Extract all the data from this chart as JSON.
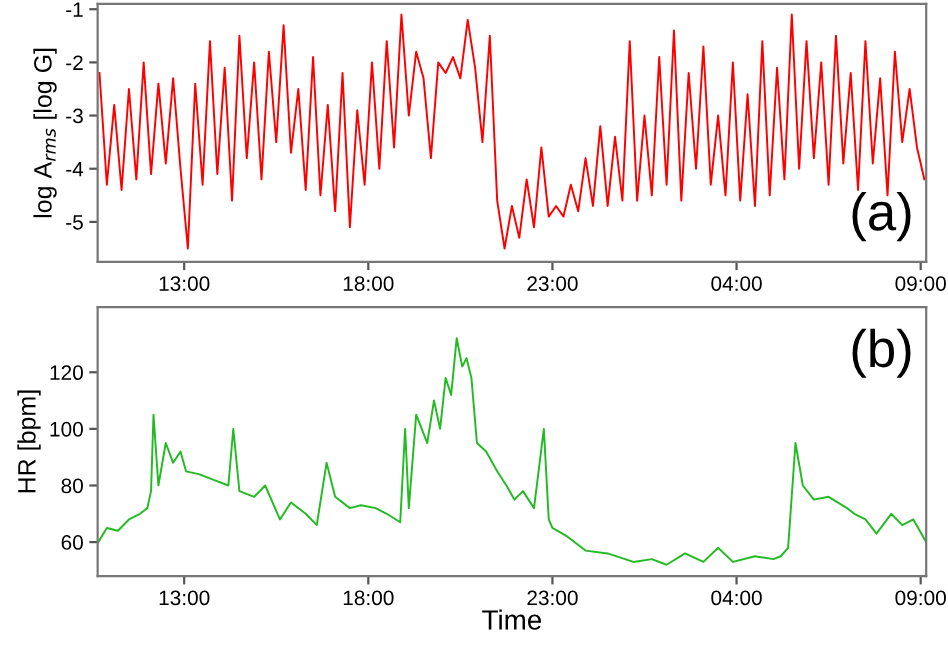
{
  "chart_data": [
    {
      "type": "line",
      "ylabel": "log A$_{rms}$ [log G]",
      "annotations": [
        "(a)"
      ],
      "xlim": [
        "2000-01-01T10:39",
        "2000-01-02T09:09"
      ],
      "xticks": [
        {
          "value": "2000-01-01T13:00",
          "label": "13:00"
        },
        {
          "value": "2000-01-01T18:00",
          "label": "18:00"
        },
        {
          "value": "2000-01-01T23:00",
          "label": "23:00"
        },
        {
          "value": "2000-01-02T04:00",
          "label": "04:00"
        },
        {
          "value": "2000-01-02T09:00",
          "label": "09:00"
        }
      ],
      "ylim": [
        -5.75,
        -0.9
      ],
      "yticks": [
        -5,
        -4,
        -3,
        -2,
        -1
      ],
      "grid": false,
      "legend": false,
      "series": [
        {
          "color": "#ff0000",
          "x": [
            "2000-01-01T10:42",
            "2000-01-01T10:54",
            "2000-01-01T11:06",
            "2000-01-01T11:18",
            "2000-01-01T11:30",
            "2000-01-01T11:42",
            "2000-01-01T11:54",
            "2000-01-01T12:06",
            "2000-01-01T12:18",
            "2000-01-01T12:30",
            "2000-01-01T12:42",
            "2000-01-01T12:54",
            "2000-01-01T13:06",
            "2000-01-01T13:18",
            "2000-01-01T13:30",
            "2000-01-01T13:42",
            "2000-01-01T13:54",
            "2000-01-01T14:06",
            "2000-01-01T14:18",
            "2000-01-01T14:30",
            "2000-01-01T14:42",
            "2000-01-01T14:54",
            "2000-01-01T15:06",
            "2000-01-01T15:18",
            "2000-01-01T15:30",
            "2000-01-01T15:42",
            "2000-01-01T15:54",
            "2000-01-01T16:06",
            "2000-01-01T16:18",
            "2000-01-01T16:30",
            "2000-01-01T16:42",
            "2000-01-01T16:54",
            "2000-01-01T17:06",
            "2000-01-01T17:18",
            "2000-01-01T17:30",
            "2000-01-01T17:42",
            "2000-01-01T17:54",
            "2000-01-01T18:06",
            "2000-01-01T18:18",
            "2000-01-01T18:30",
            "2000-01-01T18:42",
            "2000-01-01T18:54",
            "2000-01-01T19:06",
            "2000-01-01T19:18",
            "2000-01-01T19:30",
            "2000-01-01T19:42",
            "2000-01-01T19:54",
            "2000-01-01T20:06",
            "2000-01-01T20:18",
            "2000-01-01T20:30",
            "2000-01-01T20:42",
            "2000-01-01T20:54",
            "2000-01-01T21:06",
            "2000-01-01T21:18",
            "2000-01-01T21:30",
            "2000-01-01T21:42",
            "2000-01-01T21:54",
            "2000-01-01T22:06",
            "2000-01-01T22:18",
            "2000-01-01T22:30",
            "2000-01-01T22:42",
            "2000-01-01T22:54",
            "2000-01-01T23:06",
            "2000-01-01T23:18",
            "2000-01-01T23:30",
            "2000-01-01T23:42",
            "2000-01-01T23:54",
            "2000-01-02T00:06",
            "2000-01-02T00:18",
            "2000-01-02T00:30",
            "2000-01-02T00:42",
            "2000-01-02T00:54",
            "2000-01-02T01:06",
            "2000-01-02T01:18",
            "2000-01-02T01:30",
            "2000-01-02T01:42",
            "2000-01-02T01:54",
            "2000-01-02T02:06",
            "2000-01-02T02:18",
            "2000-01-02T02:30",
            "2000-01-02T02:42",
            "2000-01-02T02:54",
            "2000-01-02T03:06",
            "2000-01-02T03:18",
            "2000-01-02T03:30",
            "2000-01-02T03:42",
            "2000-01-02T03:54",
            "2000-01-02T04:06",
            "2000-01-02T04:18",
            "2000-01-02T04:30",
            "2000-01-02T04:42",
            "2000-01-02T04:54",
            "2000-01-02T05:06",
            "2000-01-02T05:18",
            "2000-01-02T05:30",
            "2000-01-02T05:42",
            "2000-01-02T05:54",
            "2000-01-02T06:06",
            "2000-01-02T06:18",
            "2000-01-02T06:30",
            "2000-01-02T06:42",
            "2000-01-02T06:54",
            "2000-01-02T07:06",
            "2000-01-02T07:18",
            "2000-01-02T07:30",
            "2000-01-02T07:42",
            "2000-01-02T07:54",
            "2000-01-02T08:06",
            "2000-01-02T08:18",
            "2000-01-02T08:30",
            "2000-01-02T08:42",
            "2000-01-02T08:54",
            "2000-01-02T09:06"
          ],
          "values": [
            -2.2,
            -4.3,
            -2.8,
            -4.4,
            -2.5,
            -4.2,
            -2.0,
            -4.1,
            -2.4,
            -3.9,
            -2.3,
            -4.0,
            -5.5,
            -2.4,
            -4.3,
            -1.6,
            -4.1,
            -2.1,
            -4.6,
            -1.5,
            -3.8,
            -2.0,
            -4.2,
            -1.8,
            -3.5,
            -1.3,
            -3.7,
            -2.5,
            -4.4,
            -1.9,
            -4.5,
            -2.8,
            -4.8,
            -2.2,
            -5.1,
            -2.9,
            -4.3,
            -2.0,
            -4.0,
            -1.6,
            -3.6,
            -1.1,
            -3.0,
            -1.8,
            -2.3,
            -3.8,
            -2.0,
            -2.2,
            -1.9,
            -2.3,
            -1.2,
            -2.1,
            -3.5,
            -1.5,
            -4.6,
            -5.5,
            -4.7,
            -5.3,
            -4.2,
            -5.1,
            -3.6,
            -4.9,
            -4.7,
            -4.9,
            -4.3,
            -4.8,
            -3.8,
            -4.7,
            -3.2,
            -4.7,
            -3.4,
            -4.6,
            -1.6,
            -4.6,
            -3.0,
            -4.5,
            -1.9,
            -4.3,
            -1.4,
            -4.6,
            -2.2,
            -4.0,
            -1.7,
            -4.3,
            -3.0,
            -4.5,
            -2.0,
            -4.6,
            -2.6,
            -4.7,
            -1.6,
            -4.5,
            -2.1,
            -4.2,
            -1.1,
            -4.0,
            -1.6,
            -3.8,
            -2.0,
            -4.3,
            -1.5,
            -3.9,
            -2.2,
            -4.4,
            -1.6,
            -3.9,
            -2.3,
            -4.5,
            -1.8,
            -3.5,
            -2.5,
            -3.6,
            -4.2
          ]
        }
      ]
    },
    {
      "type": "line",
      "xlabel": "Time",
      "ylabel": "HR [bpm]",
      "annotations": [
        "(b)"
      ],
      "xlim": [
        "2000-01-01T10:39",
        "2000-01-02T09:09"
      ],
      "xticks": [
        {
          "value": "2000-01-01T13:00",
          "label": "13:00"
        },
        {
          "value": "2000-01-01T18:00",
          "label": "18:00"
        },
        {
          "value": "2000-01-01T23:00",
          "label": "23:00"
        },
        {
          "value": "2000-01-02T04:00",
          "label": "04:00"
        },
        {
          "value": "2000-01-02T09:00",
          "label": "09:00"
        }
      ],
      "ylim": [
        48,
        143
      ],
      "yticks": [
        60,
        80,
        100,
        120
      ],
      "grid": false,
      "legend": false,
      "series": [
        {
          "color": "#22bb22",
          "x": [
            "2000-01-01T10:40",
            "2000-01-01T10:54",
            "2000-01-01T11:12",
            "2000-01-01T11:30",
            "2000-01-01T11:48",
            "2000-01-01T12:00",
            "2000-01-01T12:06",
            "2000-01-01T12:10",
            "2000-01-01T12:18",
            "2000-01-01T12:30",
            "2000-01-01T12:42",
            "2000-01-01T12:54",
            "2000-01-01T13:03",
            "2000-01-01T13:24",
            "2000-01-01T13:48",
            "2000-01-01T14:12",
            "2000-01-01T14:20",
            "2000-01-01T14:30",
            "2000-01-01T14:54",
            "2000-01-01T15:12",
            "2000-01-01T15:36",
            "2000-01-01T15:54",
            "2000-01-01T16:18",
            "2000-01-01T16:36",
            "2000-01-01T16:52",
            "2000-01-01T17:06",
            "2000-01-01T17:30",
            "2000-01-01T17:48",
            "2000-01-01T18:12",
            "2000-01-01T18:30",
            "2000-01-01T18:52",
            "2000-01-01T19:00",
            "2000-01-01T19:06",
            "2000-01-01T19:18",
            "2000-01-01T19:36",
            "2000-01-01T19:47",
            "2000-01-01T19:57",
            "2000-01-01T20:06",
            "2000-01-01T20:15",
            "2000-01-01T20:24",
            "2000-01-01T20:33",
            "2000-01-01T20:40",
            "2000-01-01T20:48",
            "2000-01-01T20:57",
            "2000-01-01T21:12",
            "2000-01-01T21:30",
            "2000-01-01T21:45",
            "2000-01-01T21:58",
            "2000-01-01T22:12",
            "2000-01-01T22:30",
            "2000-01-01T22:46",
            "2000-01-01T22:54",
            "2000-01-01T23:00",
            "2000-01-01T23:24",
            "2000-01-01T23:54",
            "2000-01-02T00:30",
            "2000-01-02T01:12",
            "2000-01-02T01:42",
            "2000-01-02T02:06",
            "2000-01-02T02:36",
            "2000-01-02T03:06",
            "2000-01-02T03:30",
            "2000-01-02T03:54",
            "2000-01-02T04:30",
            "2000-01-02T05:00",
            "2000-01-02T05:12",
            "2000-01-02T05:24",
            "2000-01-02T05:36",
            "2000-01-02T05:48",
            "2000-01-02T06:06",
            "2000-01-02T06:30",
            "2000-01-02T07:00",
            "2000-01-02T07:12",
            "2000-01-02T07:30",
            "2000-01-02T07:48",
            "2000-01-02T08:12",
            "2000-01-02T08:30",
            "2000-01-02T08:48",
            "2000-01-02T09:09"
          ],
          "values": [
            60,
            65,
            64,
            68,
            70,
            72,
            78,
            105,
            80,
            95,
            88,
            92,
            85,
            84,
            82,
            80,
            100,
            78,
            76,
            80,
            68,
            74,
            70,
            66,
            88,
            76,
            72,
            73,
            72,
            70,
            67,
            100,
            72,
            105,
            95,
            110,
            100,
            118,
            112,
            132,
            122,
            125,
            118,
            95,
            92,
            85,
            80,
            75,
            78,
            72,
            100,
            68,
            65,
            62,
            57,
            56,
            53,
            54,
            52,
            56,
            53,
            58,
            53,
            55,
            54,
            55,
            58,
            95,
            80,
            75,
            76,
            72,
            70,
            68,
            63,
            70,
            66,
            68,
            60
          ]
        }
      ]
    }
  ]
}
